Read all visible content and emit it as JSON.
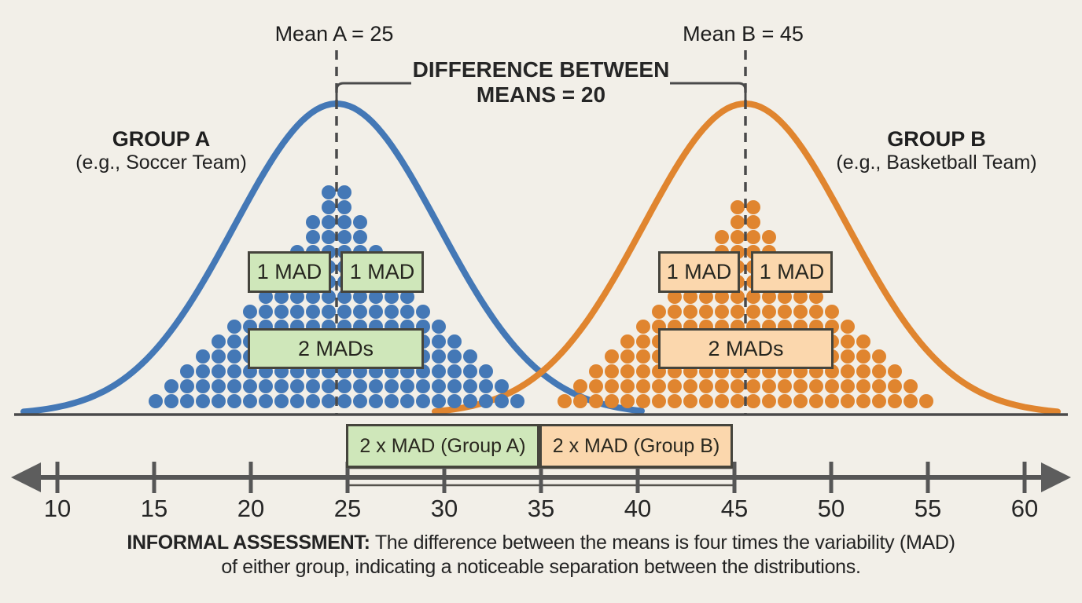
{
  "annotations": {
    "mean_a": "Mean A = 25",
    "mean_b": "Mean B = 45",
    "difference_line1": "DIFFERENCE BETWEEN",
    "difference_line2": "MEANS = 20"
  },
  "groups": {
    "a": {
      "title": "GROUP A",
      "subtitle": "(e.g., Soccer Team)",
      "mean_value": 25,
      "mad_value": 5,
      "color": "#4478b6",
      "box_fill": "#cfe7ba",
      "one_mad_left": "1 MAD",
      "one_mad_right": "1 MAD",
      "two_mads": "2 MADs",
      "axis_span_label": "2 x MAD (Group A)",
      "dot_rows": [
        2,
        2,
        4,
        4,
        6,
        6,
        8,
        10,
        12,
        14,
        16,
        18,
        20,
        22,
        24
      ]
    },
    "b": {
      "title": "GROUP B",
      "subtitle": "(e.g., Basketball Team)",
      "mean_value": 45,
      "mad_value": 5,
      "color": "#e0852f",
      "box_fill": "#fbd7ad",
      "one_mad_left": "1 MAD",
      "one_mad_right": "1 MAD",
      "two_mads": "2 MADs",
      "axis_span_label": "2 x MAD (Group B)",
      "dot_rows": [
        2,
        2,
        4,
        4,
        6,
        8,
        10,
        12,
        14,
        16,
        18,
        20,
        22,
        24
      ]
    }
  },
  "axis": {
    "ticks": [
      10,
      15,
      20,
      25,
      30,
      35,
      40,
      45,
      50,
      55,
      60
    ]
  },
  "caption": {
    "bold": "INFORMAL ASSESSMENT:",
    "rest": " The difference between the means is four times the variability (MAD)",
    "line2": "of either group, indicating a noticeable separation between the distributions."
  },
  "chart_data": {
    "type": "line",
    "title": "DIFFERENCE BETWEEN MEANS = 20",
    "xlabel": "",
    "ylabel": "",
    "x_ticks": [
      10,
      15,
      20,
      25,
      30,
      35,
      40,
      45,
      50,
      55,
      60
    ],
    "xlim": [
      8,
      62
    ],
    "grid": false,
    "legend_position": "none",
    "series": [
      {
        "name": "Group A (e.g., Soccer Team)",
        "shape": "normal curve with stacked dot plot",
        "mean": 25,
        "mad": 5,
        "color": "#4478b6"
      },
      {
        "name": "Group B (e.g., Basketball Team)",
        "shape": "normal curve with stacked dot plot",
        "mean": 45,
        "mad": 5,
        "color": "#e0852f"
      }
    ],
    "annotations": {
      "mean_a": 25,
      "mean_b": 45,
      "difference_between_means": 20,
      "mad_each_group": 5,
      "two_mad_group_a_span": [
        25,
        35
      ],
      "two_mad_group_b_span": [
        35,
        45
      ],
      "assessment": "The difference between the means is four times the variability (MAD) of either group, indicating a noticeable separation between the distributions."
    }
  }
}
